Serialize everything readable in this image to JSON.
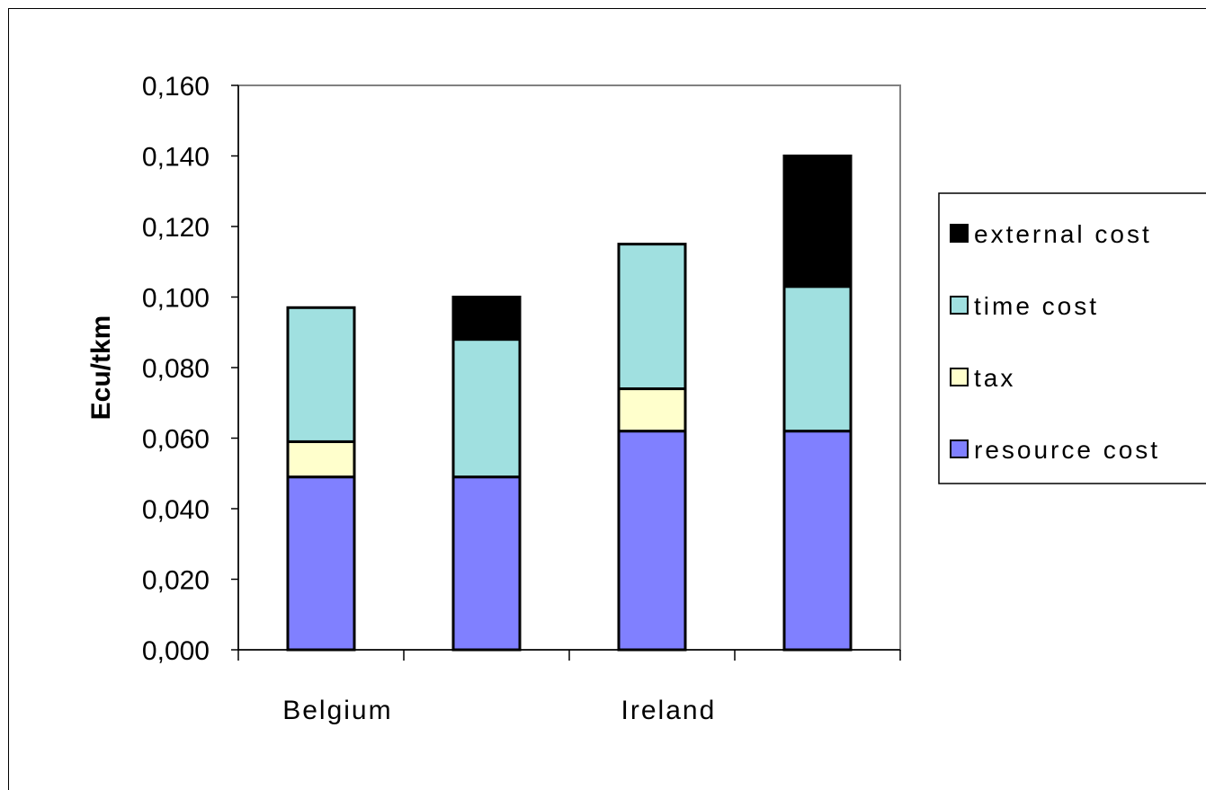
{
  "chart_data": {
    "type": "bar",
    "stacked": true,
    "categories": [
      "Belgium",
      "",
      "Ireland",
      ""
    ],
    "series": [
      {
        "name": "resource cost",
        "color": "#8080ff",
        "values": [
          0.049,
          0.049,
          0.062,
          0.062
        ]
      },
      {
        "name": "tax",
        "color": "#ffffcc",
        "values": [
          0.01,
          0.0,
          0.012,
          0.0
        ]
      },
      {
        "name": "time cost",
        "color": "#a0e0e0",
        "values": [
          0.038,
          0.039,
          0.041,
          0.041
        ]
      },
      {
        "name": "external cost",
        "color": "#000000",
        "values": [
          0.0,
          0.012,
          0.0,
          0.037
        ]
      }
    ],
    "legend_order": [
      "external cost",
      "time cost",
      "tax",
      "resource cost"
    ],
    "ylabel": "Ecu/tkm",
    "ylim": [
      0,
      0.16
    ],
    "yticks": [
      "0,000",
      "0,020",
      "0,040",
      "0,060",
      "0,080",
      "0,100",
      "0,120",
      "0,140",
      "0,160"
    ],
    "ytick_values": [
      0,
      0.02,
      0.04,
      0.06,
      0.08,
      0.1,
      0.12,
      0.14,
      0.16
    ],
    "grid": false,
    "legend_position": "right"
  }
}
